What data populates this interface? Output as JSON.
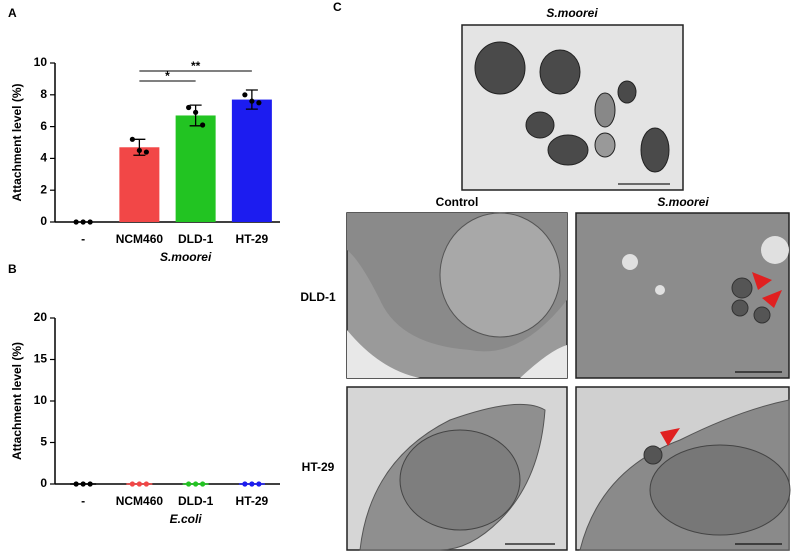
{
  "panel_labels": [
    "A",
    "B",
    "C"
  ],
  "chart_data": [
    {
      "type": "bar",
      "ylabel": "Attachment level (%)",
      "xlabel": "S.moorei",
      "categories": [
        "-",
        "NCM460",
        "DLD-1",
        "HT-29"
      ],
      "values": [
        0,
        4.7,
        6.7,
        7.7
      ],
      "errors": [
        0,
        0.5,
        0.65,
        0.6
      ],
      "points": [
        [
          0,
          0,
          0
        ],
        [
          5.2,
          4.5,
          4.4
        ],
        [
          7.2,
          6.9,
          6.1
        ],
        [
          8.0,
          7.6,
          7.5
        ]
      ],
      "colors": [
        "#000000",
        "#f24747",
        "#22c422",
        "#1c1cf0"
      ],
      "points_color": "#000000",
      "annotations": [
        "*",
        "**"
      ],
      "ylim": [
        0,
        10
      ],
      "yticks": [
        0,
        2,
        4,
        6,
        8,
        10
      ]
    },
    {
      "type": "dot",
      "ylabel": "Attachment level (%)",
      "xlabel": "E.coli",
      "categories": [
        "-",
        "NCM460",
        "DLD-1",
        "HT-29"
      ],
      "values": [
        0,
        0,
        0,
        0
      ],
      "points": [
        [
          0,
          0,
          0
        ],
        [
          0,
          0,
          0
        ],
        [
          0,
          0,
          0
        ],
        [
          0,
          0,
          0
        ]
      ],
      "colors": [
        "#000000",
        "#f24747",
        "#22c422",
        "#1c1cf0"
      ],
      "ylim": [
        0,
        20
      ],
      "yticks": [
        0,
        5,
        10,
        15,
        20
      ]
    }
  ],
  "images": {
    "top_title": "S.moorei",
    "columns": [
      "Control",
      "S.moorei"
    ],
    "rows": [
      "DLD-1",
      "HT-29"
    ]
  }
}
